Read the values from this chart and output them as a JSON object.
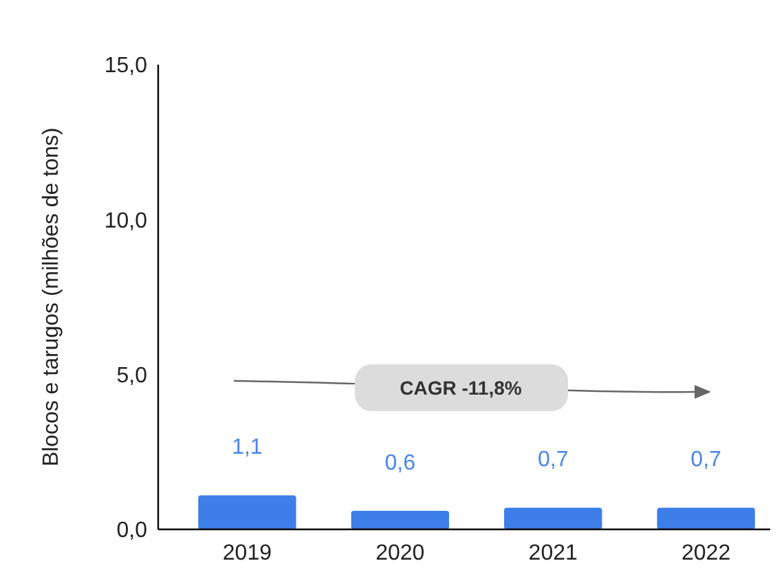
{
  "chart_data": {
    "type": "bar",
    "ylabel": "Blocos e tarugos (milhões de tons)",
    "categories": [
      "2019",
      "2020",
      "2021",
      "2022"
    ],
    "values": [
      1.1,
      0.6,
      0.7,
      0.7
    ],
    "color": "#3d7ee8",
    "value_labels": [
      "1,1",
      "0,6",
      "0,7",
      "0,7"
    ],
    "ylim": [
      0,
      15
    ],
    "yticks": [
      {
        "value": 0,
        "label": "0,0"
      },
      {
        "value": 5,
        "label": "5,0"
      },
      {
        "value": 10,
        "label": "10,0"
      },
      {
        "value": 15,
        "label": "15,0"
      }
    ],
    "annotations": [
      "CAGR -11,8%"
    ]
  }
}
